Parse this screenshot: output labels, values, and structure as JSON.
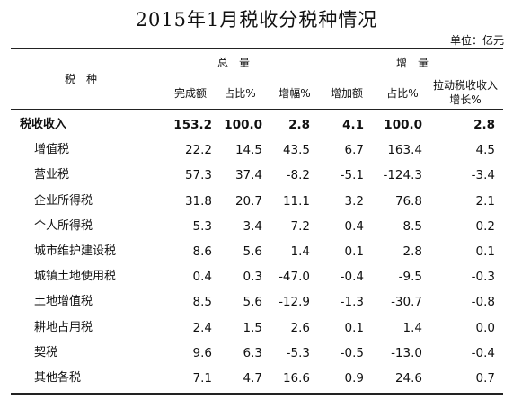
{
  "title": "2015年1月税收分税种情况",
  "unit": "单位：亿元",
  "headers": {
    "tax_type": "税　种",
    "total_group": "总　量",
    "increase_group": "增　量",
    "columns": [
      "完成额",
      "占比%",
      "增幅%",
      "增加额",
      "占比%",
      "拉动税收收入增长%"
    ]
  },
  "rows": [
    {
      "name": "税收收入",
      "values": [
        "153.2",
        "100.0",
        "2.8",
        "4.1",
        "100.0",
        "2.8"
      ]
    },
    {
      "name": "增值税",
      "values": [
        "22.2",
        "14.5",
        "43.5",
        "6.7",
        "163.4",
        "4.5"
      ]
    },
    {
      "name": "营业税",
      "values": [
        "57.3",
        "37.4",
        "-8.2",
        "-5.1",
        "-124.3",
        "-3.4"
      ]
    },
    {
      "name": "企业所得税",
      "values": [
        "31.8",
        "20.7",
        "11.1",
        "3.2",
        "76.8",
        "2.1"
      ]
    },
    {
      "name": "个人所得税",
      "values": [
        "5.3",
        "3.4",
        "7.2",
        "0.4",
        "8.5",
        "0.2"
      ]
    },
    {
      "name": "城市维护建设税",
      "values": [
        "8.6",
        "5.6",
        "1.4",
        "0.1",
        "2.8",
        "0.1"
      ]
    },
    {
      "name": "城镇土地使用税",
      "values": [
        "0.4",
        "0.3",
        "-47.0",
        "-0.4",
        "-9.5",
        "-0.3"
      ]
    },
    {
      "name": "土地增值税",
      "values": [
        "8.5",
        "5.6",
        "-12.9",
        "-1.3",
        "-30.7",
        "-0.8"
      ]
    },
    {
      "name": "耕地占用税",
      "values": [
        "2.4",
        "1.5",
        "2.6",
        "0.1",
        "1.4",
        "0.0"
      ]
    },
    {
      "name": "契税",
      "values": [
        "9.6",
        "6.3",
        "-5.3",
        "-0.5",
        "-13.0",
        "-0.4"
      ]
    },
    {
      "name": "其他各税",
      "values": [
        "7.1",
        "4.7",
        "16.6",
        "0.9",
        "24.6",
        "0.7"
      ]
    }
  ]
}
